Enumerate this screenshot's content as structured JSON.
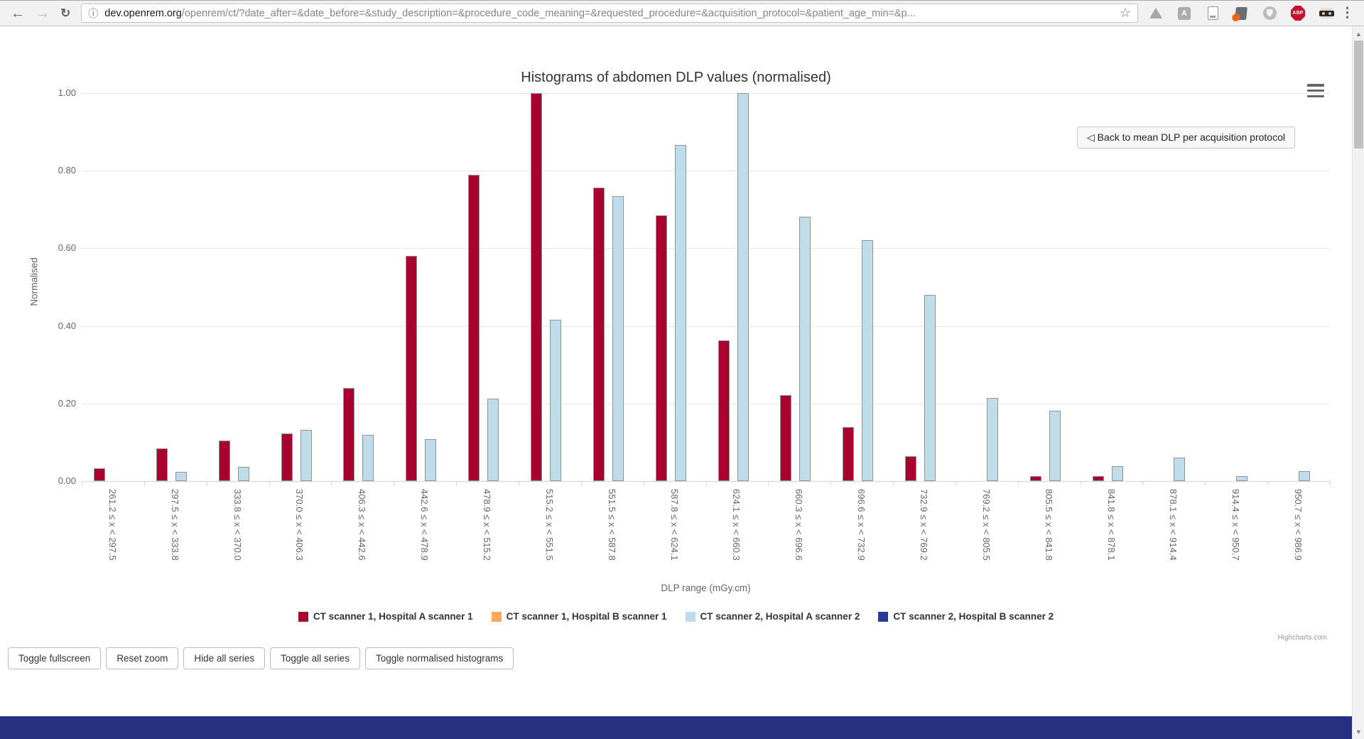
{
  "browser": {
    "url_host": "dev.openrem.org",
    "url_path": "/openrem/ct/?date_after=&date_before=&study_description=&procedure_code_meaning=&requested_procedure=&acquisition_protocol=&patient_age_min=&p...",
    "back_icon": "←",
    "forward_icon": "→",
    "reload_icon": "↻",
    "info_icon": "ⓘ",
    "star_icon": "☆",
    "menu_dots_icon": "⋮",
    "scroll_up_icon": "▲",
    "scroll_down_icon": "▼",
    "extensions": [
      {
        "name": "google-drive-icon",
        "label": ""
      },
      {
        "name": "adobe-acrobat-icon",
        "label": "A"
      },
      {
        "name": "document-icon",
        "label": ""
      },
      {
        "name": "office-orange-dot-icon",
        "label": ""
      },
      {
        "name": "shield-icon",
        "label": ""
      },
      {
        "name": "adblock-plus-icon",
        "label": "ABP"
      },
      {
        "name": "privacy-mask-icon",
        "label": ""
      }
    ]
  },
  "back_button_label": "◁ Back to mean DLP per acquisition protocol",
  "credit": "Highcharts.com",
  "toolbar": {
    "buttons": [
      "Toggle fullscreen",
      "Reset zoom",
      "Hide all series",
      "Toggle all series",
      "Toggle normalised histograms"
    ]
  },
  "chart_data": {
    "type": "bar",
    "title": "Histograms of abdomen DLP values (normalised)",
    "xlabel": "DLP range (mGy.cm)",
    "ylabel": "Normalised",
    "ylim": [
      0,
      1.0
    ],
    "yticks": [
      0,
      0.2,
      0.4,
      0.6,
      0.8,
      1.0
    ],
    "ytick_labels": [
      "0.00",
      "0.20",
      "0.40",
      "0.60",
      "0.80",
      "1.00"
    ],
    "grid": true,
    "legend_position": "bottom",
    "categories": [
      "261.2 ≤ x < 297.5",
      "297.5 ≤ x < 333.8",
      "333.8 ≤ x < 370.0",
      "370.0 ≤ x < 406.3",
      "406.3 ≤ x < 442.6",
      "442.6 ≤ x < 478.9",
      "478.9 ≤ x < 515.2",
      "515.2 ≤ x < 551.5",
      "551.5 ≤ x < 587.8",
      "587.8 ≤ x < 624.1",
      "624.1 ≤ x < 660.3",
      "660.3 ≤ x < 696.6",
      "696.6 ≤ x < 732.9",
      "732.9 ≤ x < 769.2",
      "769.2 ≤ x < 805.5",
      "805.5 ≤ x < 841.8",
      "841.8 ≤ x < 878.1",
      "878.1 ≤ x < 914.4",
      "914.4 ≤ x < 950.7",
      "950.7 ≤ x < 986.9"
    ],
    "series": [
      {
        "name": "CT scanner 1, Hospital A scanner 1",
        "color": "#A8022E",
        "values": [
          0.033,
          0.085,
          0.105,
          0.123,
          0.24,
          0.58,
          0.79,
          1.0,
          0.757,
          0.685,
          0.363,
          0.221,
          0.139,
          0.064,
          0,
          0.013,
          0.013,
          0,
          0,
          0
        ]
      },
      {
        "name": "CT scanner 1, Hospital B scanner 1",
        "color": "#F9A95B",
        "values": [
          0,
          0,
          0,
          0,
          0,
          0,
          0,
          0,
          0,
          0,
          0,
          0,
          0,
          0,
          0,
          0,
          0,
          0,
          0,
          0
        ]
      },
      {
        "name": "CT scanner 2, Hospital A scanner 2",
        "color": "#BFDCEB",
        "values": [
          0,
          0.024,
          0.037,
          0.132,
          0.119,
          0.108,
          0.212,
          0.416,
          0.735,
          0.866,
          1.0,
          0.682,
          0.621,
          0.48,
          0.215,
          0.182,
          0.038,
          0.061,
          0.013,
          0.026
        ]
      },
      {
        "name": "CT scanner 2, Hospital B scanner 2",
        "color": "#2B3A97",
        "values": [
          0,
          0,
          0,
          0,
          0,
          0,
          0,
          0,
          0,
          0,
          0,
          0,
          0,
          0,
          0,
          0,
          0,
          0,
          0,
          0
        ]
      }
    ]
  }
}
